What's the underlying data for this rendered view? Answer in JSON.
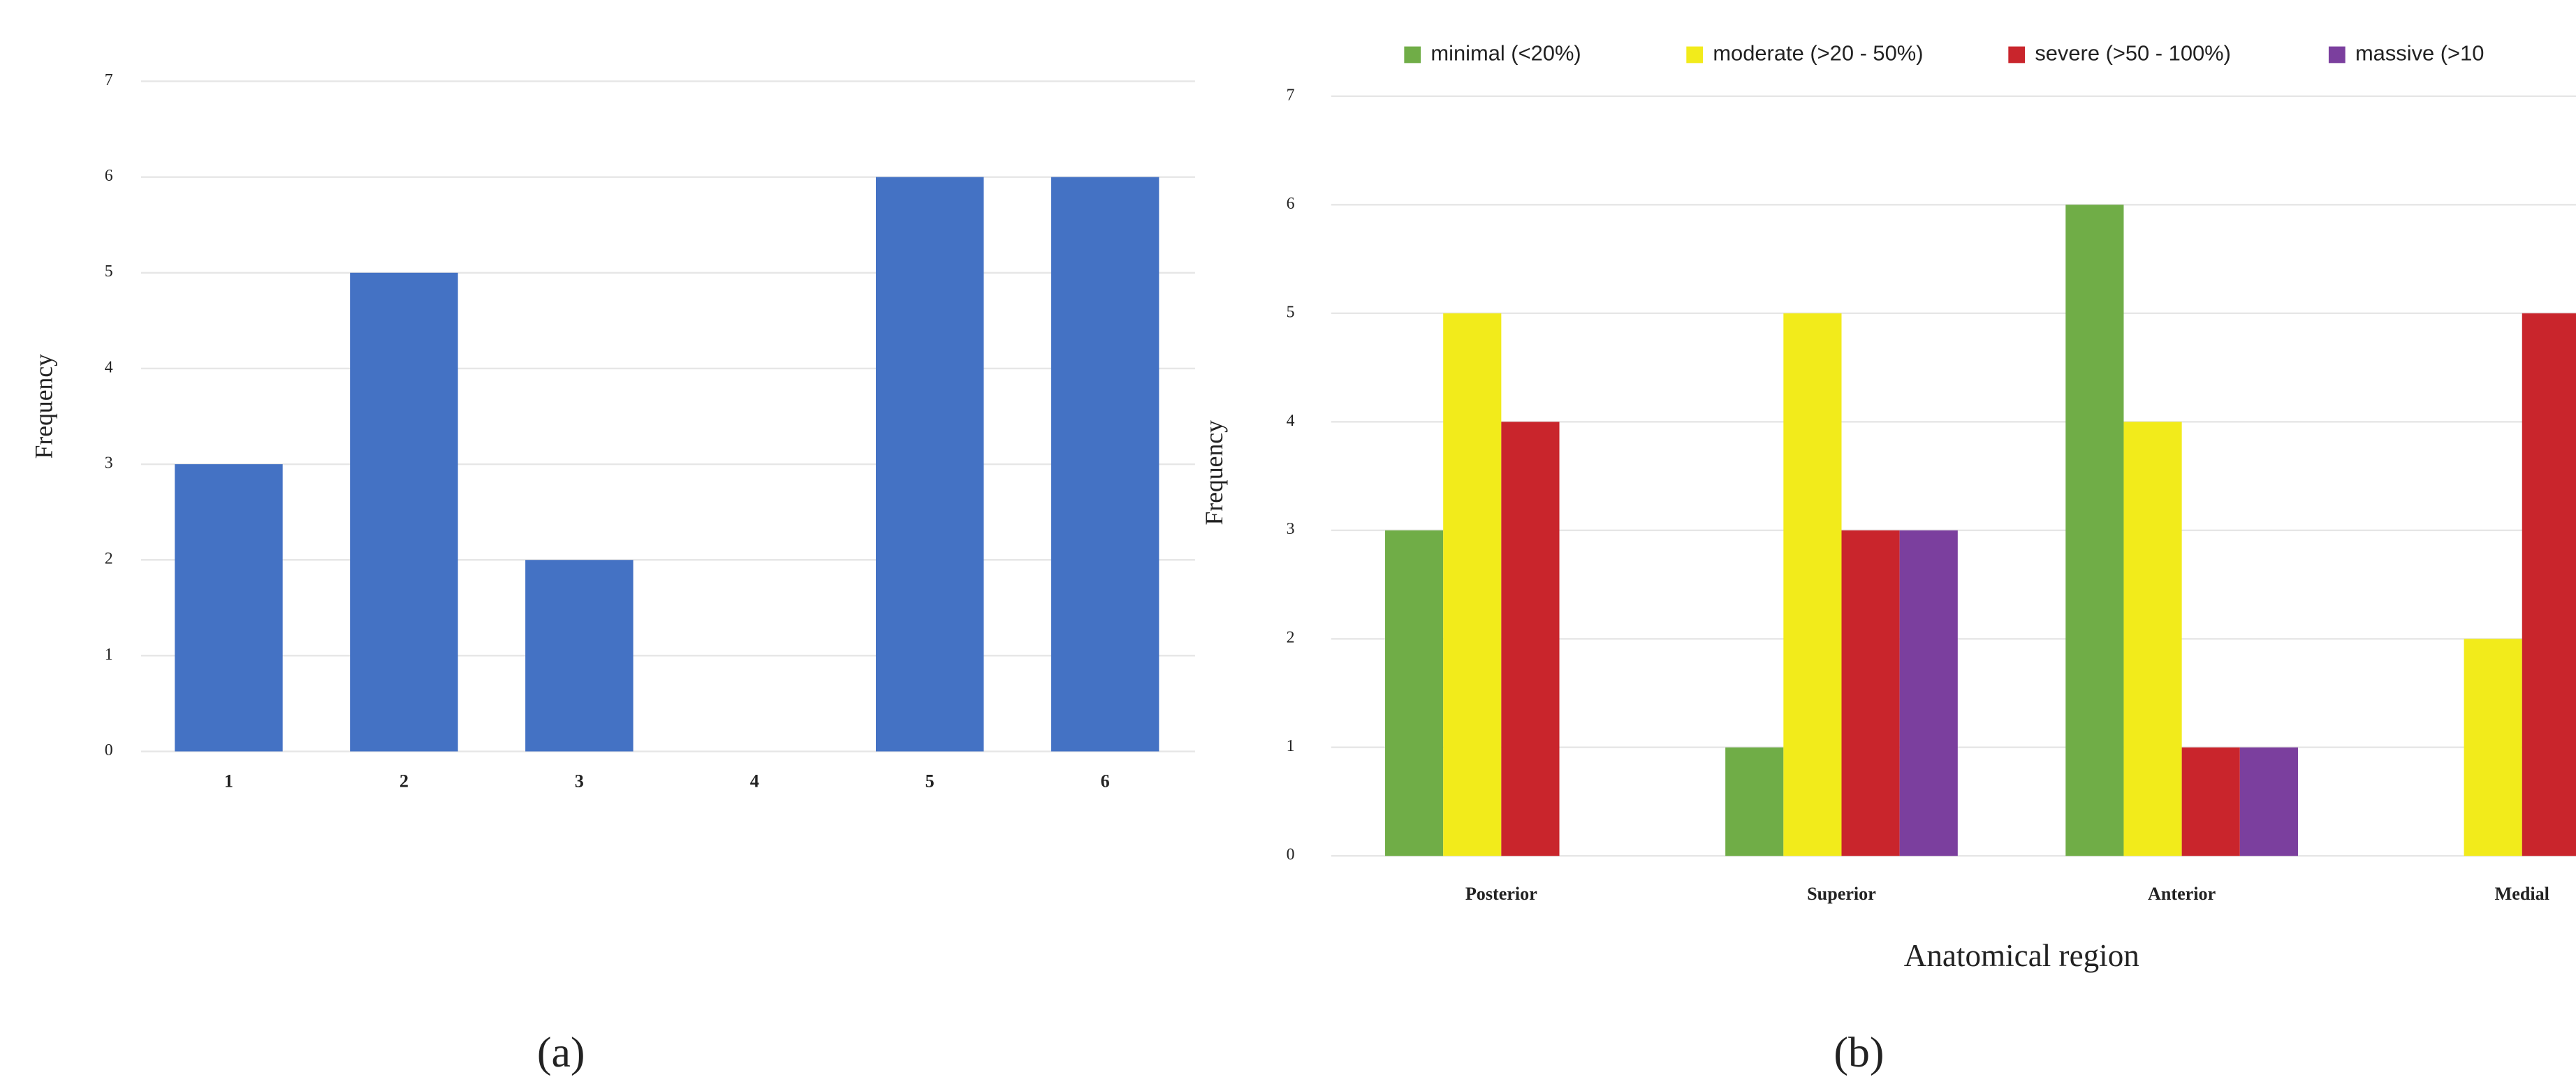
{
  "chart_data": [
    {
      "type": "bar",
      "caption": "(a)",
      "y_label": "Frequency",
      "categories": [
        "1",
        "2",
        "3",
        "4",
        "5",
        "6"
      ],
      "series": [
        {
          "name": null,
          "color": "#4472c4",
          "values": [
            3,
            5,
            2,
            0,
            6,
            6
          ]
        }
      ],
      "ylim": [
        0,
        7
      ],
      "yticks": [
        0,
        1,
        2,
        3,
        4,
        5,
        6,
        7
      ],
      "grid": true
    },
    {
      "type": "bar",
      "caption": "(b)",
      "y_label": "Frequency",
      "x_label": "Anatomical region",
      "categories": [
        "Posterior",
        "Superior",
        "Anterior",
        "Medial"
      ],
      "series": [
        {
          "name": "minimal (<20%)",
          "color": "#70ad47",
          "values": [
            3,
            1,
            6,
            0
          ]
        },
        {
          "name": "moderate (>20 - 50%)",
          "color": "#f2eb1b",
          "values": [
            5,
            5,
            4,
            2
          ]
        },
        {
          "name": "severe (>50 - 100%)",
          "color": "#c9252c",
          "values": [
            4,
            3,
            1,
            5
          ]
        },
        {
          "name": "massive (>10",
          "color": "#7b3f9e",
          "values": [
            0,
            3,
            1,
            null
          ]
        }
      ],
      "ylim": [
        0,
        7
      ],
      "yticks": [
        0,
        1,
        2,
        3,
        4,
        5,
        6,
        7
      ],
      "grid": true,
      "legend": "top"
    }
  ]
}
